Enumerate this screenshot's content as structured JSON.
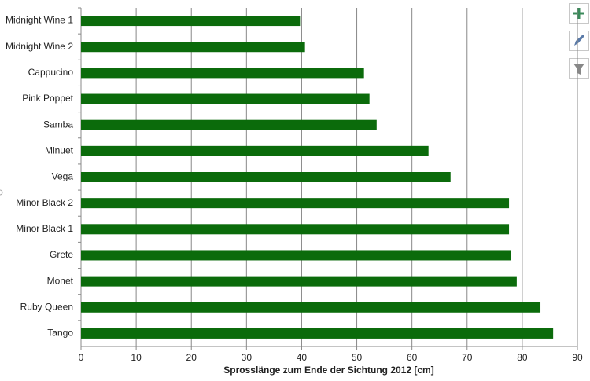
{
  "chart_data": {
    "type": "bar",
    "orientation": "horizontal",
    "xlabel": "Sprosslänge zum Ende der Sichtung  2012  [cm]",
    "categories": [
      "Midnight Wine 1",
      "Midnight Wine 2",
      "Cappucino",
      "Pink Poppet",
      "Samba",
      "Minuet",
      "Vega",
      "Minor Black 2",
      "Minor Black 1",
      "Grete",
      "Monet",
      "Ruby Queen",
      "Tango"
    ],
    "values": [
      39.7,
      40.6,
      51.3,
      52.3,
      53.6,
      63.0,
      67.0,
      77.6,
      77.6,
      77.9,
      79.0,
      83.3,
      85.6
    ],
    "color": "#0b6b0b",
    "xlim": [
      0,
      90
    ],
    "xticks": [
      0,
      10,
      20,
      30,
      40,
      50,
      60,
      70,
      80,
      90
    ],
    "grid": true
  }
}
